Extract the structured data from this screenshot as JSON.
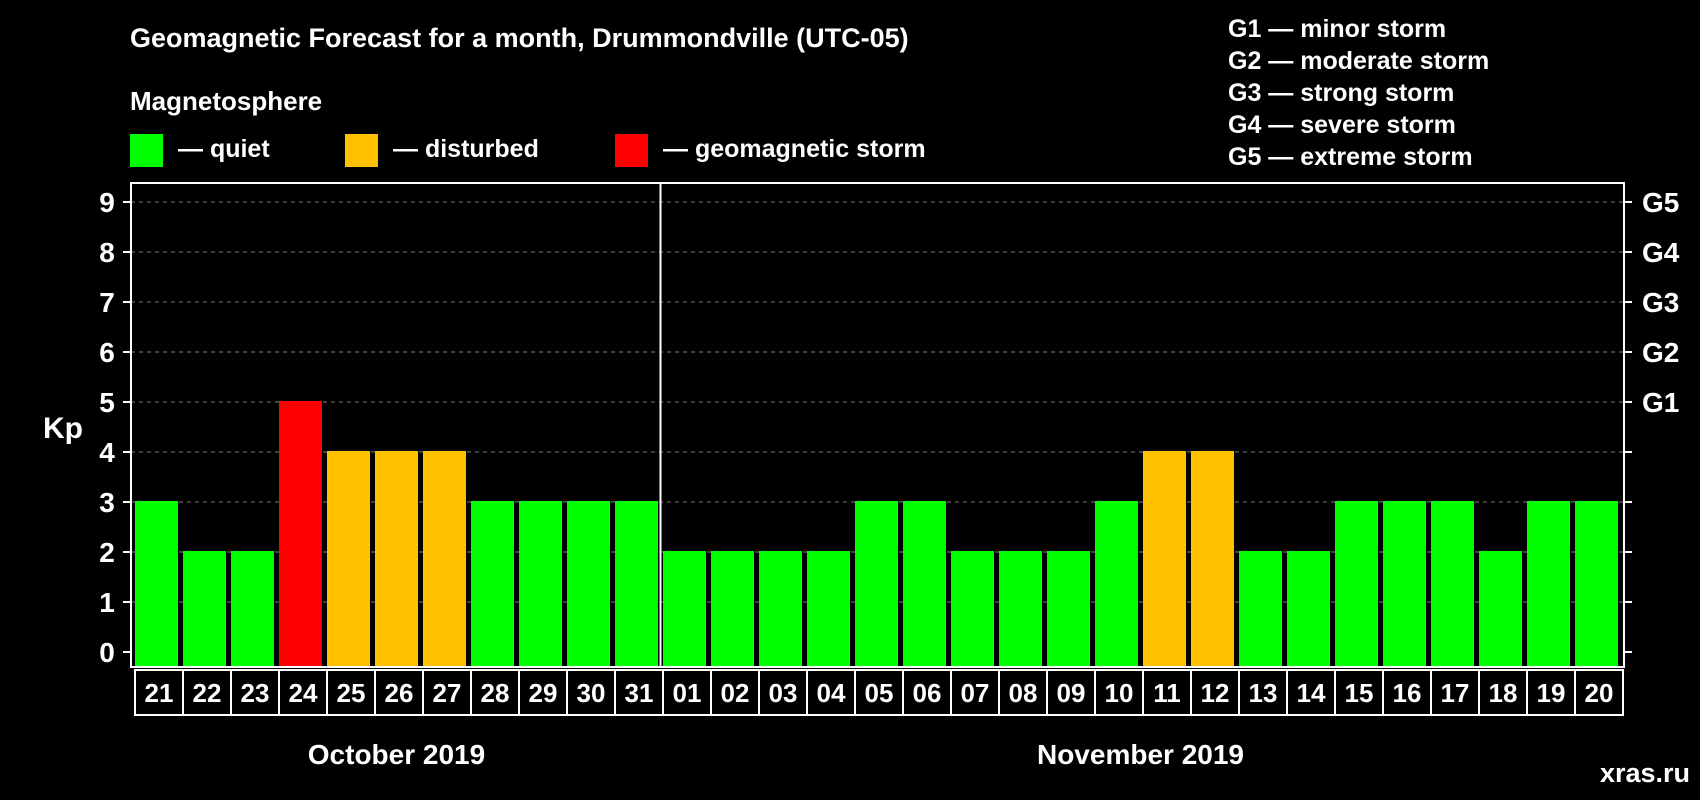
{
  "chart_data": {
    "type": "bar",
    "title": "Geomagnetic Forecast for a month, Drummondville (UTC-05)",
    "ylabel": "Kp",
    "ylim": [
      0,
      9
    ],
    "yticks": [
      "0",
      "1",
      "2",
      "3",
      "4",
      "5",
      "6",
      "7",
      "8",
      "9"
    ],
    "right_axis_labels": [
      {
        "value": 5,
        "label": "G1"
      },
      {
        "value": 6,
        "label": "G2"
      },
      {
        "value": 7,
        "label": "G3"
      },
      {
        "value": 8,
        "label": "G4"
      },
      {
        "value": 9,
        "label": "G5"
      }
    ],
    "legend": {
      "title": "Magnetosphere",
      "items": [
        {
          "label": "— quiet",
          "color": "#00ff00"
        },
        {
          "label": "— disturbed",
          "color": "#ffc000"
        },
        {
          "label": "— geomagnetic storm",
          "color": "#ff0000"
        }
      ]
    },
    "storm_legend": [
      "G1 — minor storm",
      "G2 — moderate storm",
      "G3 — strong storm",
      "G4 — severe storm",
      "G5 — extreme storm"
    ],
    "categories": [
      "21",
      "22",
      "23",
      "24",
      "25",
      "26",
      "27",
      "28",
      "29",
      "30",
      "31",
      "01",
      "02",
      "03",
      "04",
      "05",
      "06",
      "07",
      "08",
      "09",
      "10",
      "11",
      "12",
      "13",
      "14",
      "15",
      "16",
      "17",
      "18",
      "19",
      "20"
    ],
    "values": [
      3,
      2,
      2,
      5,
      4,
      4,
      4,
      3,
      3,
      3,
      3,
      2,
      2,
      2,
      2,
      3,
      3,
      2,
      2,
      2,
      3,
      4,
      4,
      2,
      2,
      3,
      3,
      3,
      2,
      3,
      3
    ],
    "colors": {
      "quiet": "#00ff00",
      "disturbed": "#ffc000",
      "storm": "#ff0000",
      "background": "#000000",
      "axis": "#ffffff",
      "grid": "#808080",
      "watermark": "#808080"
    },
    "months": [
      {
        "label": "October 2019",
        "start_index": 0,
        "end_index": 10
      },
      {
        "label": "November 2019",
        "start_index": 11,
        "end_index": 30
      }
    ],
    "month_divider_after_index": 10,
    "grid": true
  },
  "watermark": "xras.ru"
}
